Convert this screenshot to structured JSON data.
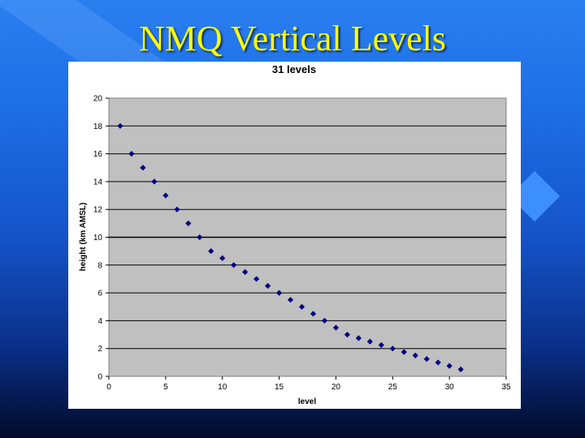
{
  "slide": {
    "title": "NMQ Vertical Levels",
    "title_color": "#ffff00"
  },
  "chart_data": {
    "type": "scatter",
    "title": "31 levels",
    "xlabel": "level",
    "ylabel": "height (km AMSL)",
    "xlim": [
      0,
      35
    ],
    "ylim": [
      0,
      20
    ],
    "xticks": [
      0,
      5,
      10,
      15,
      20,
      25,
      30,
      35
    ],
    "yticks": [
      0,
      2,
      4,
      6,
      8,
      10,
      12,
      14,
      16,
      18,
      20
    ],
    "grid": "horizontal",
    "plot_background": "#c0c0c0",
    "marker_color": "#000080",
    "marker": "diamond",
    "x": [
      1,
      2,
      3,
      4,
      5,
      6,
      7,
      8,
      9,
      10,
      11,
      12,
      13,
      14,
      15,
      16,
      17,
      18,
      19,
      20,
      21,
      22,
      23,
      24,
      25,
      26,
      27,
      28,
      29,
      30,
      31
    ],
    "y": [
      18,
      16,
      15,
      14,
      13,
      12,
      11,
      10,
      9,
      8.5,
      8,
      7.5,
      7,
      6.5,
      6,
      5.5,
      5,
      4.5,
      4,
      3.5,
      3,
      2.75,
      2.5,
      2.25,
      2,
      1.75,
      1.5,
      1.25,
      1,
      0.75,
      0.5
    ]
  }
}
